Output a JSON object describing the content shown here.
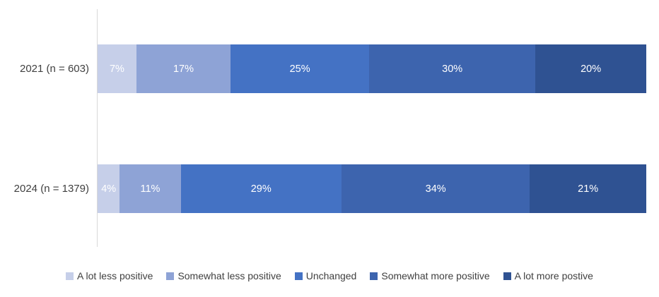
{
  "chart_data": {
    "type": "bar",
    "orientation": "horizontal",
    "stacked": true,
    "unit": "%",
    "title": "",
    "xlabel": "",
    "ylabel": "",
    "grid": false,
    "legend_position": "bottom",
    "categories": [
      "2021 (n = 603)",
      "2024 (n = 1379)"
    ],
    "series": [
      {
        "name": "A lot less positive",
        "color": "#c6cfe9",
        "values": [
          7,
          4
        ]
      },
      {
        "name": "Somewhat less positive",
        "color": "#8ea3d6",
        "values": [
          17,
          11
        ]
      },
      {
        "name": "Unchanged",
        "color": "#4472c4",
        "values": [
          25,
          29
        ]
      },
      {
        "name": "Somewhat more positive",
        "color": "#3d64ae",
        "values": [
          30,
          34
        ]
      },
      {
        "name": "A lot more postive",
        "color": "#2f5292",
        "values": [
          20,
          21
        ]
      }
    ],
    "colors": {
      "axis_line": "#d9d9d9",
      "category_label_text": "#404040",
      "segment_value_text": "#ffffff",
      "legend_text": "#404040"
    }
  }
}
